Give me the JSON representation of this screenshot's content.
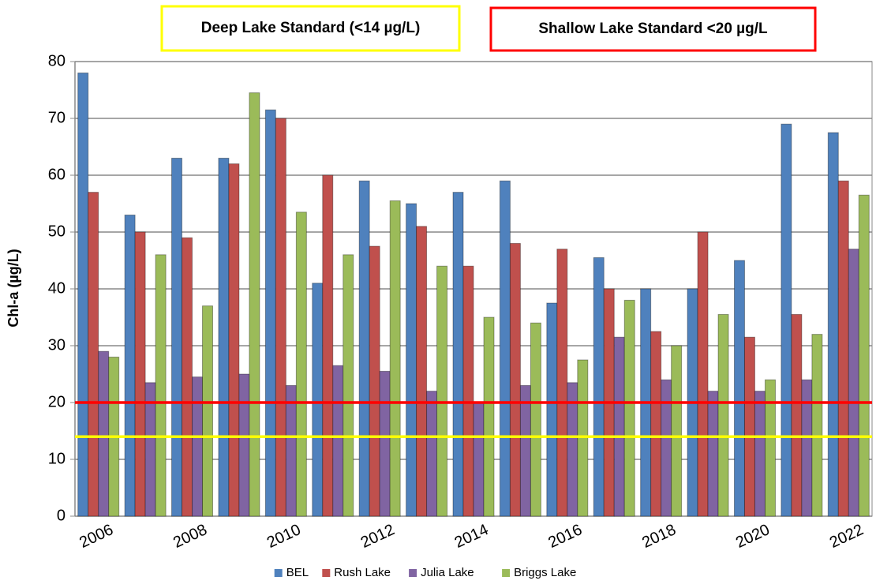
{
  "chart_data": {
    "type": "bar",
    "y_label": "Chl-a (µg/L)",
    "categories": [
      2006,
      null,
      2008,
      null,
      2010,
      null,
      2012,
      null,
      2014,
      null,
      2016,
      null,
      2018,
      null,
      2020,
      null,
      2022
    ],
    "series": [
      {
        "name": "BEL",
        "color": "#4f81bd",
        "values": [
          78,
          53,
          63,
          63,
          71.5,
          41,
          59,
          55,
          57,
          59,
          37.5,
          45.5,
          40,
          40,
          45,
          69,
          67.5
        ]
      },
      {
        "name": "Rush Lake",
        "color": "#c0504d",
        "values": [
          57,
          50,
          49,
          62,
          70,
          60,
          47.5,
          51,
          44,
          48,
          47,
          40,
          32.5,
          50,
          31.5,
          35.5,
          59
        ]
      },
      {
        "name": "Julia Lake",
        "color": "#8064a2",
        "values": [
          29,
          23.5,
          24.5,
          25,
          23,
          26.5,
          25.5,
          22,
          20,
          23,
          23.5,
          31.5,
          24,
          22,
          22,
          24,
          47
        ]
      },
      {
        "name": "Briggs Lake",
        "color": "#9bbb59",
        "values": [
          28,
          46,
          37,
          74.5,
          53.5,
          46,
          55.5,
          44,
          35,
          34,
          27.5,
          38,
          30,
          35.5,
          24,
          32,
          56.5
        ]
      }
    ],
    "reference_lines": [
      {
        "label": "Deep Lake Standard (<14 µg/L)",
        "value": 14,
        "color": "#ffff00"
      },
      {
        "label": "Shallow Lake Standard <20 µg/L",
        "value": 20,
        "color": "#ff0000"
      }
    ],
    "ylim": [
      0,
      80
    ],
    "yticks": [
      0,
      10,
      20,
      30,
      40,
      50,
      60,
      70,
      80
    ],
    "grid": true,
    "legend": "bottom"
  }
}
